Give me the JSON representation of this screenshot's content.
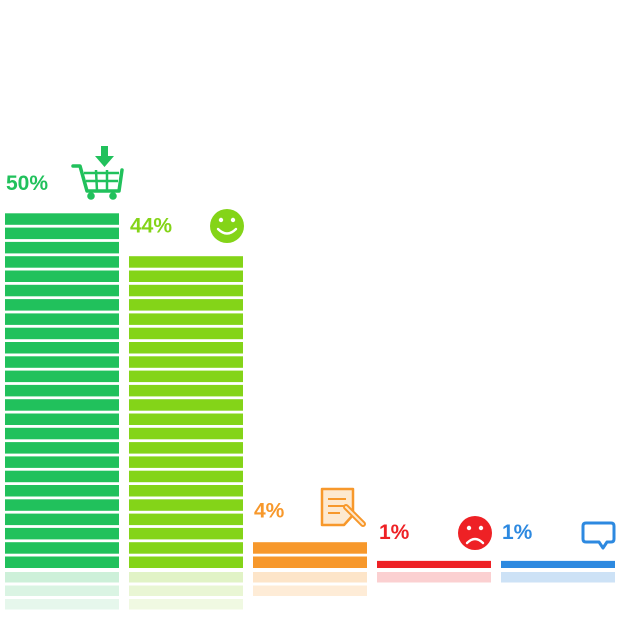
{
  "chart_data": {
    "type": "bar",
    "categories": [],
    "values": [
      50,
      44,
      4,
      1,
      1
    ],
    "labels": [
      "50%",
      "44%",
      "4%",
      "1%",
      "1%"
    ],
    "icons": [
      "cart-download-icon",
      "smiley-face-icon",
      "document-pen-icon",
      "sad-face-icon",
      "chat-bubble-icon"
    ],
    "colors": [
      "#21c15c",
      "#84d418",
      "#f7982b",
      "#ee2125",
      "#2d89e0"
    ],
    "reflection_colors": [
      "#cdf0d9",
      "#e1f3c6",
      "#fde5c9",
      "#fbd0d1",
      "#cde2f6"
    ],
    "ylim": [
      0,
      50
    ],
    "grid": false,
    "title": "",
    "xlabel": "",
    "ylabel": ""
  }
}
